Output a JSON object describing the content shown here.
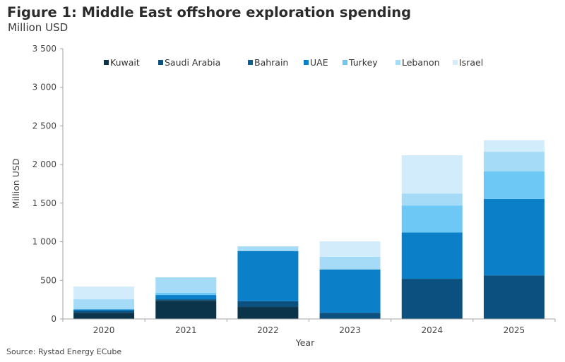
{
  "header": {
    "title": "Figure 1: Middle East offshore exploration spending",
    "subtitle": "Million USD"
  },
  "footer": {
    "source": "Source: Rystad Energy ECube"
  },
  "chart_data": {
    "type": "bar",
    "stacked": true,
    "title": "Figure 1: Middle East offshore exploration spending",
    "subtitle": "Million USD",
    "xlabel": "Year",
    "ylabel": "Million USD",
    "ylim": [
      0,
      3500
    ],
    "yticks": [
      0,
      500,
      1000,
      1500,
      2000,
      2500,
      3000,
      3500
    ],
    "ytick_labels": [
      "0",
      "500",
      "1 000",
      "1 500",
      "2 000",
      "2 500",
      "3 000",
      "3 500"
    ],
    "grid": false,
    "legend_position": "top",
    "categories": [
      "2020",
      "2021",
      "2022",
      "2023",
      "2024",
      "2025"
    ],
    "series": [
      {
        "name": "Kuwait",
        "color": "#0b3349",
        "values": [
          80,
          235,
          155,
          0,
          0,
          0
        ]
      },
      {
        "name": "Saudi Arabia",
        "color": "#0b507e",
        "values": [
          25,
          20,
          75,
          80,
          520,
          565
        ]
      },
      {
        "name": "Bahrain",
        "color": "#0a5f93",
        "values": [
          0,
          0,
          0,
          0,
          0,
          0
        ]
      },
      {
        "name": "UAE",
        "color": "#0b7fc7",
        "values": [
          20,
          55,
          650,
          560,
          600,
          990
        ]
      },
      {
        "name": "Turkey",
        "color": "#6dc8f5",
        "values": [
          0,
          30,
          0,
          0,
          350,
          355
        ]
      },
      {
        "name": "Lebanon",
        "color": "#a6dbf7",
        "values": [
          130,
          200,
          60,
          165,
          155,
          255
        ]
      },
      {
        "name": "Israel",
        "color": "#d2ecfb",
        "values": [
          165,
          0,
          0,
          200,
          495,
          150
        ]
      }
    ],
    "source": "Source: Rystad Energy ECube"
  }
}
